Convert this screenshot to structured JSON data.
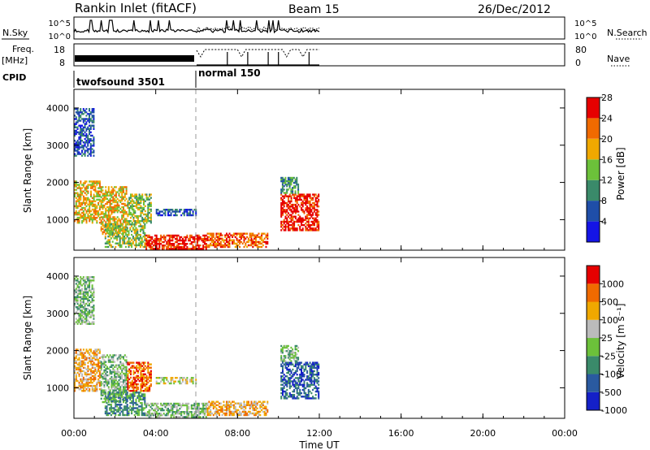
{
  "header": {
    "title": "Rankin Inlet (fitACF)",
    "beam": "Beam 15",
    "date": "26/Dec/2012"
  },
  "aux_panels": {
    "nsky_label": "N.Sky",
    "nsky_ticks": [
      "10^5",
      "10^0"
    ],
    "nsearch_label": "N.Search",
    "nsearch_ticks": [
      "10^5",
      "10^0"
    ],
    "freq_label": "Freq.",
    "freq_unit": "[MHz]",
    "freq_ticks": [
      "18",
      "8"
    ],
    "nave_label": "Nave",
    "nave_ticks": [
      "80",
      "0"
    ],
    "cpid_label": "CPID",
    "cpid_modes": [
      {
        "label": "twofsound 3501",
        "start_hour": 0,
        "end_hour": 6
      },
      {
        "label": "normal 150",
        "start_hour": 6,
        "end_hour": 12
      }
    ]
  },
  "chart_data": [
    {
      "type": "heatmap",
      "name": "power",
      "xlabel": "",
      "ylabel": "Slant Range [km]",
      "xlim": [
        0,
        24
      ],
      "ylim": [
        180,
        4500
      ],
      "yticks": [
        "1000",
        "2000",
        "3000",
        "4000"
      ],
      "colorbar": {
        "label": "Power [dB]",
        "ticks": [
          "4",
          "8",
          "12",
          "16",
          "20",
          "24",
          "28"
        ],
        "colors": [
          "#1414e6",
          "#1f4ea8",
          "#3a8a6a",
          "#6cc13a",
          "#f0a800",
          "#f06a00",
          "#e60000"
        ]
      },
      "dashed_marker_hour": 6,
      "regions": [
        {
          "t": [
            0.0,
            1.3
          ],
          "r": [
            900,
            2050
          ],
          "level": 4
        },
        {
          "t": [
            1.3,
            2.6
          ],
          "r": [
            600,
            1900
          ],
          "level": 4
        },
        {
          "t": [
            2.6,
            3.8
          ],
          "r": [
            900,
            1700
          ],
          "level": 3
        },
        {
          "t": [
            1.5,
            3.5
          ],
          "r": [
            250,
            900
          ],
          "level": 3
        },
        {
          "t": [
            3.5,
            6.5
          ],
          "r": [
            200,
            600
          ],
          "level": 6
        },
        {
          "t": [
            4.0,
            6.0
          ],
          "r": [
            1100,
            1300
          ],
          "level": 1
        },
        {
          "t": [
            6.5,
            9.5
          ],
          "r": [
            250,
            650
          ],
          "level": 5
        },
        {
          "t": [
            10.1,
            12.0
          ],
          "r": [
            700,
            1700
          ],
          "level": 6
        },
        {
          "t": [
            10.1,
            11.0
          ],
          "r": [
            1700,
            2150
          ],
          "level": 2
        },
        {
          "t": [
            0.0,
            1.0
          ],
          "r": [
            2700,
            4000
          ],
          "level": 1
        }
      ]
    },
    {
      "type": "heatmap",
      "name": "velocity",
      "xlabel": "Time UT",
      "ylabel": "Slant Range [km]",
      "xlim": [
        0,
        24
      ],
      "ylim": [
        180,
        4500
      ],
      "xticks": [
        "00:00",
        "04:00",
        "08:00",
        "12:00",
        "16:00",
        "20:00",
        "00:00"
      ],
      "yticks": [
        "1000",
        "2000",
        "3000",
        "4000"
      ],
      "colorbar": {
        "label": "Velocity [m s⁻¹]",
        "ticks": [
          "1000",
          "500",
          "100",
          "25",
          "-25",
          "-100",
          "-500",
          "-1000"
        ],
        "colors": [
          "#1420c8",
          "#2a5aa0",
          "#3a8a6a",
          "#6cc13a",
          "#bbbbbb",
          "#f0a800",
          "#f06a00",
          "#e60000"
        ]
      },
      "dashed_marker_hour": 6,
      "regions": [
        {
          "t": [
            0.0,
            1.3
          ],
          "r": [
            900,
            2050
          ],
          "level": 5
        },
        {
          "t": [
            1.3,
            2.6
          ],
          "r": [
            600,
            1900
          ],
          "level": 3
        },
        {
          "t": [
            2.6,
            3.8
          ],
          "r": [
            900,
            1700
          ],
          "level": 6
        },
        {
          "t": [
            1.5,
            3.5
          ],
          "r": [
            250,
            900
          ],
          "level": 2
        },
        {
          "t": [
            3.5,
            6.5
          ],
          "r": [
            200,
            600
          ],
          "level": 3
        },
        {
          "t": [
            4.0,
            6.0
          ],
          "r": [
            1100,
            1300
          ],
          "level": 4
        },
        {
          "t": [
            6.5,
            9.5
          ],
          "r": [
            250,
            650
          ],
          "level": 5
        },
        {
          "t": [
            10.1,
            12.0
          ],
          "r": [
            700,
            1700
          ],
          "level": 1
        },
        {
          "t": [
            10.1,
            11.0
          ],
          "r": [
            1700,
            2150
          ],
          "level": 3
        },
        {
          "t": [
            0.0,
            1.0
          ],
          "r": [
            2700,
            4000
          ],
          "level": 3
        }
      ]
    }
  ]
}
